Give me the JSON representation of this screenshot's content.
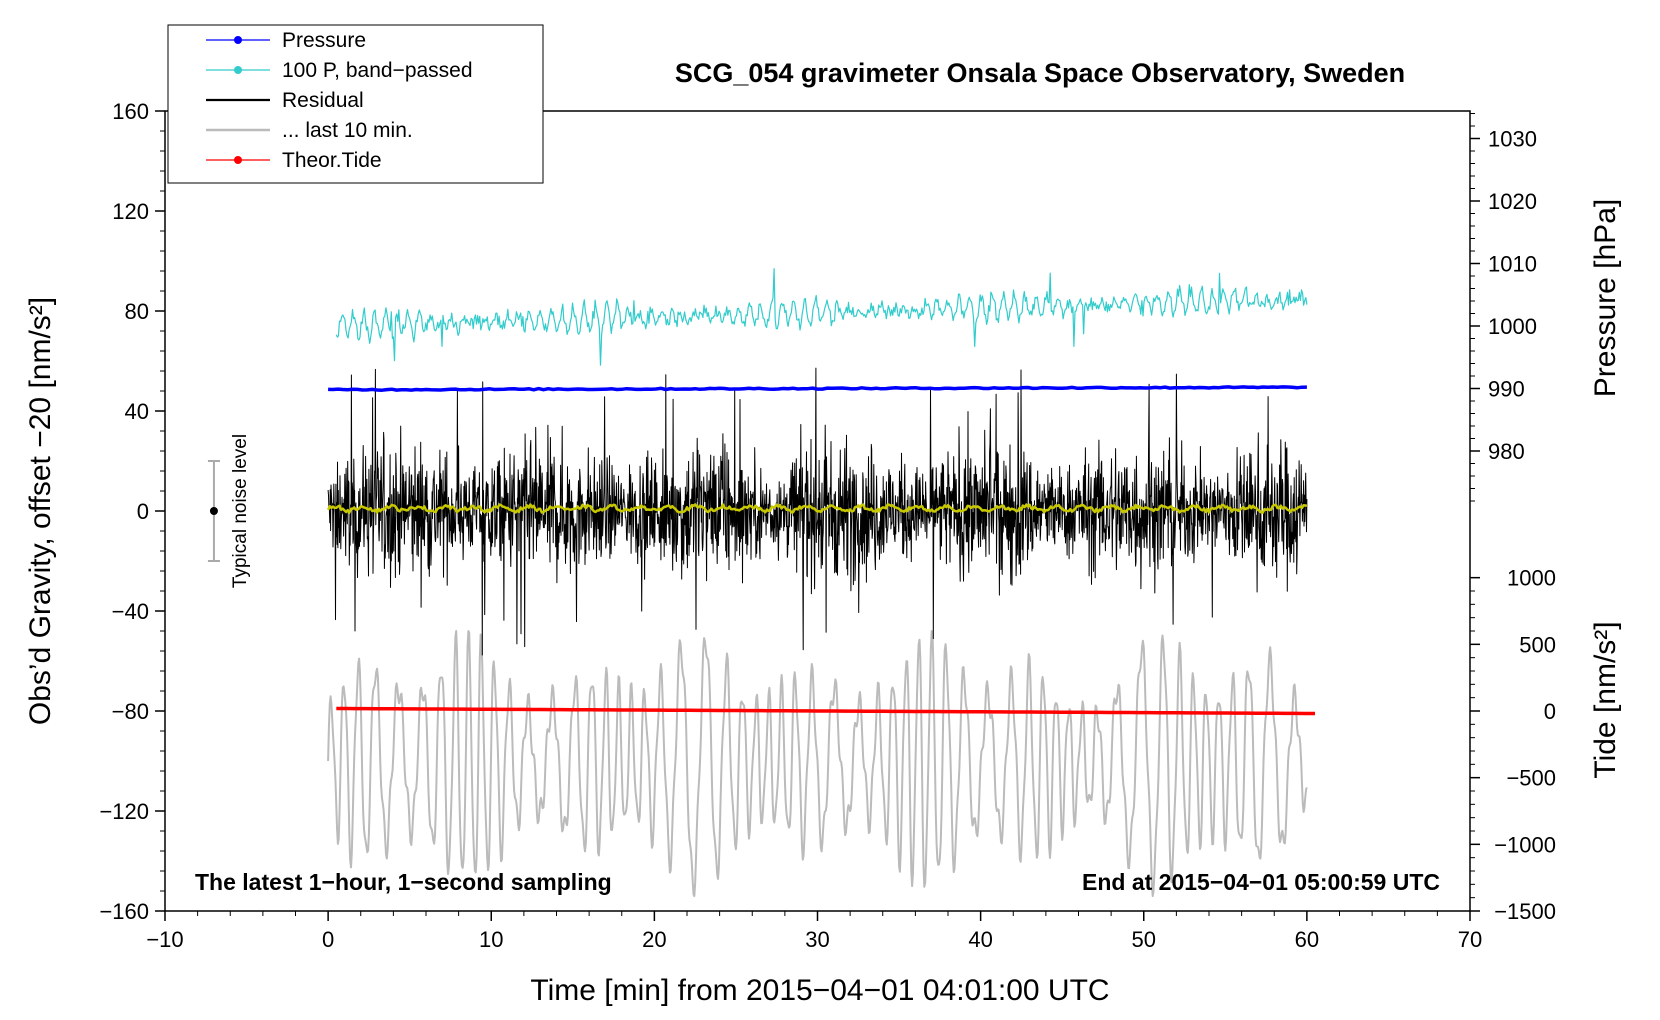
{
  "chart_data": {
    "type": "line",
    "title": "SCG_054 gravimeter Onsala Space Observatory, Sweden",
    "xlabel": "Time [min] from 2015−04−01 04:01:00 UTC",
    "ylabel_left": "Obs’d Gravity, offset −20 [nm/s²]",
    "ylabel_right_pressure": "Pressure [hPa]",
    "ylabel_right_tide": "Tide [nm/s²]",
    "xlim": [
      -10,
      70
    ],
    "ylim": [
      -160,
      160
    ],
    "x_ticks": [
      -10,
      0,
      10,
      20,
      30,
      40,
      50,
      60,
      70
    ],
    "x_tick_labels": [
      "−10",
      "0",
      "10",
      "20",
      "30",
      "40",
      "50",
      "60",
      "70"
    ],
    "y_ticks": [
      160,
      120,
      80,
      40,
      0,
      -40,
      -80,
      -120,
      -160
    ],
    "y_tick_labels": [
      "160",
      "120",
      "80",
      "40",
      "0",
      "−40",
      "−80",
      "−120",
      "−160"
    ],
    "pressure_axis": {
      "ticks": [
        1030,
        1020,
        1010,
        1000,
        990,
        980
      ],
      "tick_labels": [
        "1030",
        "1020",
        "1010",
        "1000",
        "990",
        "980"
      ],
      "left_value_at": {
        "value": 990,
        "gravity": 49
      },
      "scale_hpa_per_gravity_unit": 0.4
    },
    "tide_axis": {
      "ticks": [
        1000,
        500,
        0,
        -500,
        -1000,
        -1500
      ],
      "tick_labels": [
        "1000",
        "500",
        "0",
        "−500",
        "−1000",
        "−1500"
      ],
      "left_value_at": {
        "value": 0,
        "gravity": -80
      },
      "scale_tide_per_gravity_unit": 18.75
    },
    "legend": [
      {
        "label": "Pressure",
        "color": "#0000ff",
        "marker": true
      },
      {
        "label": "100 P, band−passed",
        "color": "#33cccc",
        "marker": true
      },
      {
        "label": "Residual",
        "color": "#000000",
        "marker": false
      },
      {
        "label": "... last 10 min.",
        "color": "#bbbbbb",
        "marker": false
      },
      {
        "label": "Theor.Tide",
        "color": "#ff0000",
        "marker": true
      }
    ],
    "series": [
      {
        "name": "Pressure",
        "color": "#0000ff",
        "x_range": [
          0,
          60
        ],
        "y_start": 48.5,
        "y_end": 49.5
      },
      {
        "name": "100 P, band-passed",
        "color": "#33cccc",
        "x_range": [
          0.5,
          60
        ],
        "y_start": 74,
        "y_end": 85,
        "amplitude": 5
      },
      {
        "name": "Residual",
        "color": "#000000",
        "x_range": [
          0,
          60
        ],
        "y_center": 0,
        "amplitude": 28,
        "y_max": 61,
        "y_min": -67
      },
      {
        "name": "Residual smoothed",
        "color": "#c8c800",
        "x_range": [
          0,
          60
        ],
        "y_center": 1,
        "amplitude": 1.5
      },
      {
        "name": "... last 10 min.",
        "color": "#bbbbbb",
        "x_range": [
          0,
          60
        ],
        "y_center": -100,
        "amplitude": 40,
        "y_max": -48,
        "y_min": -165
      },
      {
        "name": "Theor.Tide",
        "color": "#ff0000",
        "x_range": [
          0.5,
          60.5
        ],
        "y_start": -79,
        "y_end": -81
      }
    ],
    "noise_bar": {
      "label": "Typical noise level",
      "x": -7,
      "center": 0,
      "half_range": 20
    },
    "annotations": {
      "left": "The latest 1−hour, 1−second sampling",
      "right": "End at 2015−04−01 05:00:59 UTC"
    }
  }
}
